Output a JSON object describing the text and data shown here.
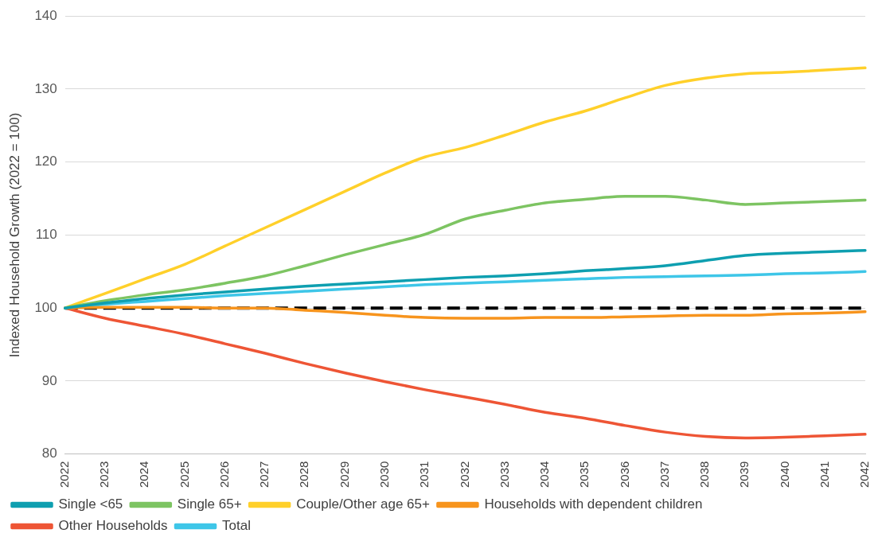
{
  "chart_data": {
    "type": "line",
    "ylabel": "Indexed Household Growth (2022 = 100)",
    "categories": [
      "2022",
      "2023",
      "2024",
      "2025",
      "2026",
      "2027",
      "2028",
      "2029",
      "2030",
      "2031",
      "2032",
      "2033",
      "2034",
      "2035",
      "2036",
      "2037",
      "2038",
      "2039",
      "2040",
      "2041",
      "2042"
    ],
    "ylim": [
      80,
      140
    ],
    "yticks": [
      80,
      90,
      100,
      110,
      120,
      130,
      140
    ],
    "grid": "y",
    "legend": "bottom",
    "marker": "none",
    "line_style": "solid",
    "series": [
      {
        "name": "Single <65",
        "color": "#0e9fb0",
        "values": [
          100,
          100.7,
          101.3,
          101.8,
          102.2,
          102.6,
          103.0,
          103.3,
          103.6,
          103.9,
          104.2,
          104.4,
          104.7,
          105.1,
          105.4,
          105.8,
          106.5,
          107.2,
          107.5,
          107.7,
          107.9
        ]
      },
      {
        "name": "Single 65+",
        "color": "#7dc462",
        "values": [
          100,
          101,
          101.8,
          102.5,
          103.4,
          104.4,
          105.8,
          107.3,
          108.7,
          110.1,
          112.2,
          113.4,
          114.4,
          114.9,
          115.3,
          115.3,
          114.8,
          114.2,
          114.4,
          114.6,
          114.8
        ]
      },
      {
        "name": "Couple/Other age 65+",
        "color": "#ffd02a",
        "values": [
          100,
          102,
          104,
          106,
          108.5,
          111,
          113.5,
          116,
          118.5,
          120.7,
          122,
          123.7,
          125.5,
          127,
          128.8,
          130.5,
          131.5,
          132.1,
          132.3,
          132.6,
          132.9
        ]
      },
      {
        "name": "Households with dependent children",
        "color": "#f7941d",
        "values": [
          100,
          100.1,
          100.1,
          100.1,
          100,
          100,
          99.7,
          99.4,
          99.0,
          98.7,
          98.6,
          98.6,
          98.7,
          98.7,
          98.8,
          98.9,
          99.0,
          99.0,
          99.2,
          99.3,
          99.5
        ]
      },
      {
        "name": "Other Households",
        "color": "#ee5535",
        "values": [
          100,
          98.6,
          97.5,
          96.4,
          95.1,
          93.8,
          92.4,
          91.1,
          89.9,
          88.8,
          87.8,
          86.8,
          85.7,
          84.9,
          83.9,
          83.0,
          82.4,
          82.2,
          82.3,
          82.5,
          82.7
        ]
      },
      {
        "name": "Total",
        "color": "#3ec6e8",
        "values": [
          100,
          100.5,
          100.9,
          101.3,
          101.7,
          102.0,
          102.3,
          102.6,
          102.9,
          103.2,
          103.4,
          103.6,
          103.8,
          104.0,
          104.2,
          104.3,
          104.4,
          104.5,
          104.7,
          104.8,
          105.0
        ]
      }
    ],
    "ref_lines": [
      {
        "axis": "y",
        "value": 100,
        "color": "#000000",
        "line_style": "dashed"
      }
    ]
  }
}
